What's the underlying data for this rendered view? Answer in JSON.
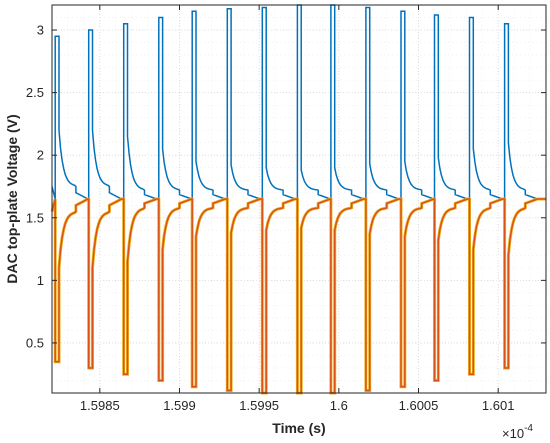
{
  "chart_data": {
    "type": "line",
    "title": "",
    "xlabel": "Time (s)",
    "ylabel": "DAC top-plate Voltage (V)",
    "x_exponent_label": "×10",
    "x_exponent_power": "-4",
    "xlim": [
      1.5982,
      1.6013
    ],
    "ylim": [
      0.1,
      3.2
    ],
    "x_ticks": [
      1.5985,
      1.599,
      1.5995,
      1.6,
      1.6005,
      1.601
    ],
    "x_tick_labels": [
      "1.5985",
      "1.599",
      "1.5995",
      "1.6",
      "1.6005",
      "1.601"
    ],
    "y_ticks": [
      0.5,
      1,
      1.5,
      2,
      2.5,
      3
    ],
    "y_tick_labels": [
      "0.5",
      "1",
      "1.5",
      "2",
      "2.5",
      "3"
    ],
    "grid": true,
    "grid_style": "dotted",
    "legend": "none",
    "baseline": 1.65,
    "series": [
      {
        "color": "#0072bd",
        "pulse_starts": [
          1.59822,
          1.59843,
          1.59865,
          1.59887,
          1.59908,
          1.5993,
          1.59952,
          1.59974,
          1.59995,
          1.60017,
          1.60039,
          1.6006,
          1.60082,
          1.60104
        ],
        "pulse_peaks": [
          2.95,
          3.0,
          3.05,
          3.1,
          3.15,
          3.17,
          3.18,
          3.2,
          3.2,
          3.18,
          3.15,
          3.12,
          3.1,
          3.05
        ],
        "pulse_step_levels": [
          2.2,
          2.2,
          2.15,
          2.05,
          1.95,
          1.92,
          1.9,
          1.88,
          1.9,
          1.93,
          1.95,
          1.98,
          2.05,
          2.1
        ],
        "pulse_tail_levels": [
          1.75,
          1.75,
          1.72,
          1.72,
          1.72,
          1.72,
          1.72,
          1.72,
          1.72,
          1.72,
          1.72,
          1.72,
          1.72,
          1.72
        ]
      },
      {
        "color": "#d95319",
        "secondary_color": "#edb120",
        "pulse_starts": [
          1.59822,
          1.59843,
          1.59865,
          1.59887,
          1.59908,
          1.5993,
          1.59952,
          1.59974,
          1.59995,
          1.60017,
          1.60039,
          1.6006,
          1.60082,
          1.60104
        ],
        "pulse_troughs": [
          0.35,
          0.3,
          0.25,
          0.2,
          0.15,
          0.12,
          0.1,
          0.1,
          0.1,
          0.12,
          0.15,
          0.2,
          0.25,
          0.3
        ],
        "pulse_step_levels": [
          1.1,
          1.1,
          1.15,
          1.25,
          1.35,
          1.38,
          1.4,
          1.42,
          1.4,
          1.37,
          1.35,
          1.32,
          1.25,
          1.2
        ],
        "pulse_tail_levels": [
          1.55,
          1.55,
          1.58,
          1.58,
          1.58,
          1.58,
          1.58,
          1.58,
          1.58,
          1.58,
          1.58,
          1.58,
          1.58,
          1.58
        ]
      }
    ]
  }
}
